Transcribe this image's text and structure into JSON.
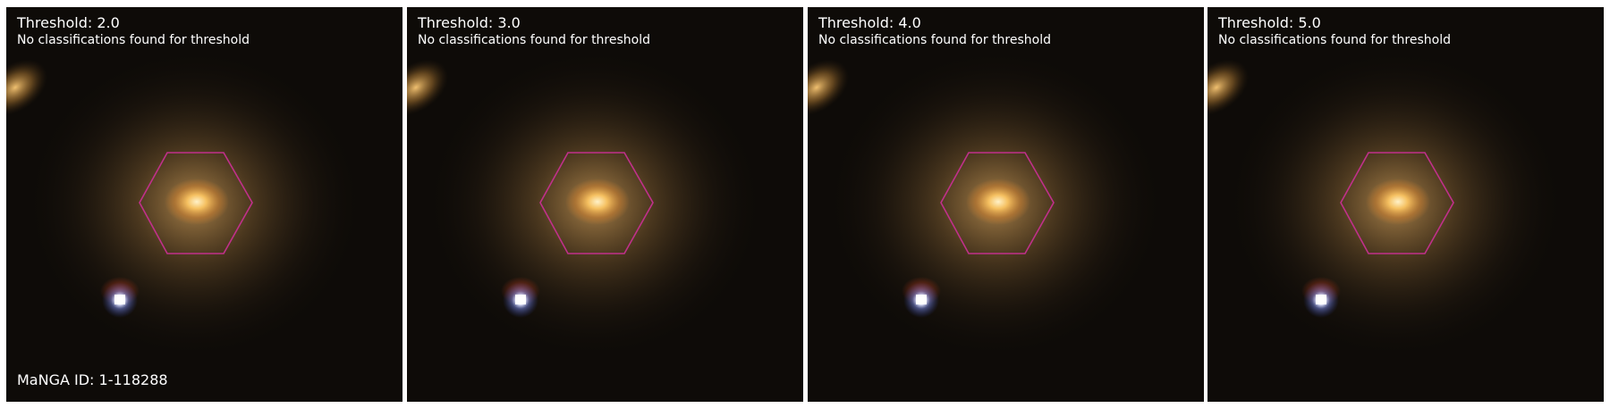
{
  "panels": [
    {
      "title": "Threshold: 2.0",
      "subtitle": "No classifications found for threshold"
    },
    {
      "title": "Threshold: 3.0",
      "subtitle": "No classifications found for threshold"
    },
    {
      "title": "Threshold: 4.0",
      "subtitle": "No classifications found for threshold"
    },
    {
      "title": "Threshold: 5.0",
      "subtitle": "No classifications found for threshold"
    }
  ],
  "footer": {
    "manga_id_label": "MaNGA ID: 1-118288"
  },
  "colors": {
    "hexagon": "#c0308a",
    "text": "#ffffff",
    "background": "#0e0b08"
  }
}
